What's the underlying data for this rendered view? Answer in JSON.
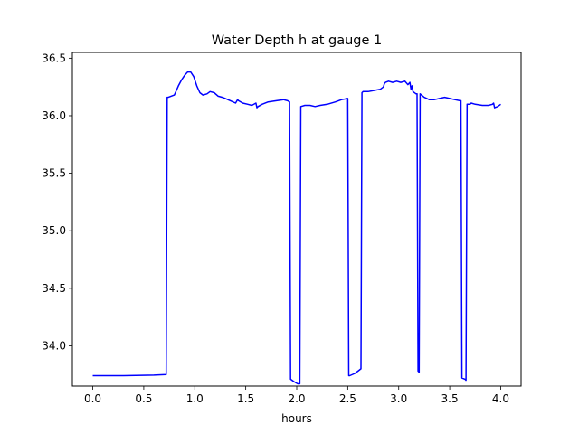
{
  "chart_data": {
    "type": "line",
    "title": "Water Depth h at gauge 1",
    "xlabel": "hours",
    "ylabel": "",
    "xlim": [
      -0.2,
      4.2
    ],
    "ylim": [
      33.65,
      36.55
    ],
    "xticks": [
      0.0,
      0.5,
      1.0,
      1.5,
      2.0,
      2.5,
      3.0,
      3.5,
      4.0
    ],
    "xtick_labels": [
      "0.0",
      "0.5",
      "1.0",
      "1.5",
      "2.0",
      "2.5",
      "3.0",
      "3.5",
      "4.0"
    ],
    "yticks": [
      34.0,
      34.5,
      35.0,
      35.5,
      36.0,
      36.5
    ],
    "ytick_labels": [
      "34.0",
      "34.5",
      "35.0",
      "35.5",
      "36.0",
      "36.5"
    ],
    "grid": false,
    "line_color": "#0000ff",
    "series": [
      {
        "x": [
          0.0,
          0.3,
          0.6,
          0.72,
          0.73,
          0.74,
          0.8,
          0.82,
          0.84,
          0.87,
          0.9,
          0.93,
          0.96,
          0.99,
          1.02,
          1.05,
          1.08,
          1.12,
          1.15,
          1.19,
          1.23,
          1.27,
          1.3,
          1.35,
          1.4,
          1.42,
          1.43,
          1.47,
          1.52,
          1.56,
          1.6,
          1.61,
          1.62,
          1.66,
          1.72,
          1.8,
          1.87,
          1.91,
          1.93,
          1.94,
          1.97,
          2.01,
          2.03,
          2.04,
          2.08,
          2.13,
          2.18,
          2.23,
          2.3,
          2.38,
          2.44,
          2.5,
          2.51,
          2.52,
          2.57,
          2.6,
          2.63,
          2.64,
          2.65,
          2.7,
          2.76,
          2.82,
          2.85,
          2.86,
          2.87,
          2.9,
          2.94,
          2.98,
          3.02,
          3.06,
          3.09,
          3.11,
          3.12,
          3.13,
          3.14,
          3.17,
          3.18,
          3.19,
          3.2,
          3.21,
          3.25,
          3.3,
          3.35,
          3.4,
          3.45,
          3.5,
          3.55,
          3.6,
          3.61,
          3.62,
          3.65,
          3.66,
          3.67,
          3.7,
          3.71,
          3.75,
          3.82,
          3.88,
          3.92,
          3.93,
          3.94,
          3.97,
          4.0
        ],
        "y": [
          33.74,
          33.74,
          33.745,
          33.75,
          36.16,
          36.16,
          36.18,
          36.22,
          36.26,
          36.31,
          36.35,
          36.38,
          36.38,
          36.34,
          36.26,
          36.2,
          36.18,
          36.19,
          36.21,
          36.2,
          36.17,
          36.16,
          36.15,
          36.13,
          36.11,
          36.14,
          36.13,
          36.11,
          36.1,
          36.09,
          36.11,
          36.07,
          36.08,
          36.1,
          36.12,
          36.13,
          36.14,
          36.13,
          36.12,
          33.71,
          33.69,
          33.67,
          33.67,
          36.08,
          36.09,
          36.09,
          36.08,
          36.09,
          36.1,
          36.12,
          36.14,
          36.15,
          33.74,
          33.74,
          33.76,
          33.78,
          33.8,
          36.2,
          36.21,
          36.21,
          36.22,
          36.23,
          36.25,
          36.28,
          36.29,
          36.3,
          36.29,
          36.3,
          36.29,
          36.3,
          36.27,
          36.29,
          36.23,
          36.26,
          36.21,
          36.19,
          36.19,
          33.78,
          33.77,
          36.19,
          36.16,
          36.14,
          36.14,
          36.15,
          36.16,
          36.15,
          36.14,
          36.13,
          36.13,
          33.72,
          33.71,
          33.7,
          36.1,
          36.1,
          36.11,
          36.1,
          36.09,
          36.09,
          36.1,
          36.11,
          36.07,
          36.08,
          36.1
        ]
      }
    ]
  }
}
